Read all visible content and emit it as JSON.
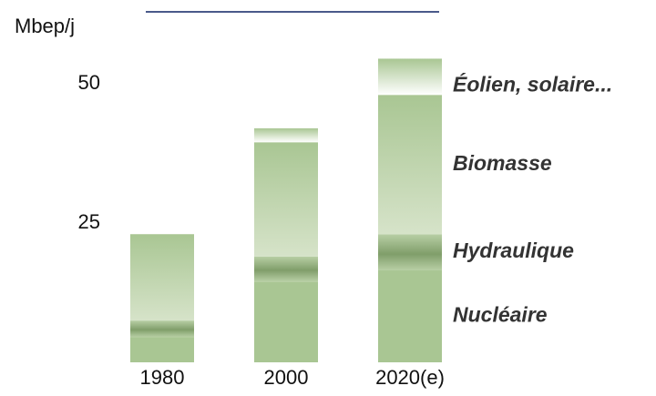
{
  "chart_data": {
    "type": "stacked_bar",
    "y_label": "Mbep/j",
    "categories": [
      "1980",
      "2000",
      "2020(e)"
    ],
    "series": [
      {
        "name": "Nucléaire",
        "color": "#a9c693",
        "values": [
          4.5,
          14.5,
          16.5
        ]
      },
      {
        "name": "Hydraulique",
        "color": "#809e6a",
        "values": [
          3,
          4.5,
          6.5
        ]
      },
      {
        "name": "Biomasse",
        "color": "#a9c693",
        "values": [
          15.5,
          20.5,
          25
        ]
      },
      {
        "name": "Éolien, solaire...",
        "color": "#a9c693",
        "values": [
          0,
          2.5,
          6.5
        ]
      }
    ],
    "ylim": [
      0,
      55
    ],
    "yticks": [
      25,
      50
    ],
    "grid": false
  }
}
